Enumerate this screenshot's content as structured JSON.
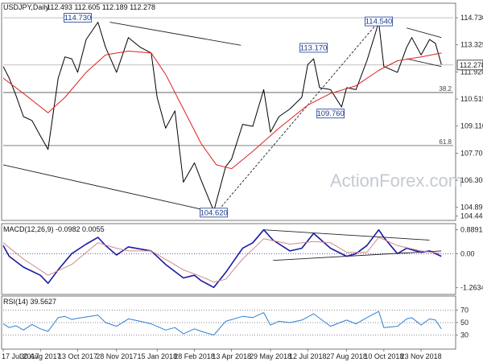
{
  "chart_data": [
    {
      "type": "line",
      "panel": "price",
      "title": "USDJPY,Daily",
      "ohlc_header": "112.493 112.605 112.189 112.278",
      "y_ticks": [
        "114.730",
        "113.325",
        "111.920",
        "110.515",
        "109.110",
        "107.705",
        "106.300",
        "104.895",
        "104.445"
      ],
      "ylim": [
        104.3,
        115.4
      ],
      "x_tick_labels": [
        "17 Jul 2017",
        "30 Aug 2017",
        "13 Oct 2017",
        "28 Nov 2017",
        "15 Jan 2018",
        "28 Feb 2018",
        "13 Apr 2018",
        "29 May 2018",
        "12 Jul 2018",
        "27 Aug 2018",
        "10 Oct 2018",
        "23 Nov 2018"
      ],
      "x_range": [
        "2017-07-17",
        "2018-12-31"
      ],
      "series": [
        {
          "color": "#000000",
          "points": [
            [
              "2017-07-17",
              112.2
            ],
            [
              "2017-07-24",
              111.6
            ],
            [
              "2017-08-01",
              110.7
            ],
            [
              "2017-08-10",
              109.6
            ],
            [
              "2017-08-20",
              109.4
            ],
            [
              "2017-08-30",
              108.6
            ],
            [
              "2017-09-08",
              107.9
            ],
            [
              "2017-09-20",
              111.6
            ],
            [
              "2017-09-28",
              112.7
            ],
            [
              "2017-10-06",
              112.6
            ],
            [
              "2017-10-13",
              111.9
            ],
            [
              "2017-10-23",
              113.6
            ],
            [
              "2017-11-06",
              114.5
            ],
            [
              "2017-11-15",
              113.2
            ],
            [
              "2017-11-28",
              111.9
            ],
            [
              "2017-12-12",
              113.7
            ],
            [
              "2017-12-26",
              113.2
            ],
            [
              "2018-01-08",
              112.9
            ],
            [
              "2018-01-15",
              110.6
            ],
            [
              "2018-01-25",
              109.0
            ],
            [
              "2018-02-05",
              109.9
            ],
            [
              "2018-02-15",
              106.2
            ],
            [
              "2018-02-28",
              107.2
            ],
            [
              "2018-03-08",
              106.3
            ],
            [
              "2018-03-23",
              104.7
            ],
            [
              "2018-03-26",
              105.2
            ],
            [
              "2018-04-06",
              107.0
            ],
            [
              "2018-04-13",
              107.4
            ],
            [
              "2018-04-26",
              109.2
            ],
            [
              "2018-05-08",
              109.1
            ],
            [
              "2018-05-21",
              111.0
            ],
            [
              "2018-05-29",
              108.8
            ],
            [
              "2018-06-08",
              109.6
            ],
            [
              "2018-06-21",
              110.0
            ],
            [
              "2018-07-05",
              110.6
            ],
            [
              "2018-07-12",
              112.3
            ],
            [
              "2018-07-19",
              112.6
            ],
            [
              "2018-07-26",
              111.1
            ],
            [
              "2018-08-08",
              111.0
            ],
            [
              "2018-08-21",
              110.1
            ],
            [
              "2018-08-27",
              111.1
            ],
            [
              "2018-09-07",
              111.0
            ],
            [
              "2018-09-20",
              112.5
            ],
            [
              "2018-10-04",
              114.5
            ],
            [
              "2018-10-10",
              112.2
            ],
            [
              "2018-10-26",
              111.9
            ],
            [
              "2018-11-06",
              113.2
            ],
            [
              "2018-11-12",
              113.7
            ],
            [
              "2018-11-23",
              112.8
            ],
            [
              "2018-12-03",
              113.6
            ],
            [
              "2018-12-10",
              113.4
            ],
            [
              "2018-12-17",
              112.3
            ]
          ]
        },
        {
          "color": "#e02020",
          "points": [
            [
              "2017-07-17",
              111.6
            ],
            [
              "2017-08-10",
              110.8
            ],
            [
              "2017-09-08",
              109.8
            ],
            [
              "2017-09-28",
              110.6
            ],
            [
              "2017-10-23",
              111.9
            ],
            [
              "2017-11-15",
              112.8
            ],
            [
              "2017-12-12",
              113.0
            ],
            [
              "2018-01-08",
              112.9
            ],
            [
              "2018-01-25",
              111.8
            ],
            [
              "2018-02-15",
              110.0
            ],
            [
              "2018-03-08",
              108.2
            ],
            [
              "2018-03-26",
              107.1
            ],
            [
              "2018-04-13",
              106.9
            ],
            [
              "2018-05-08",
              107.8
            ],
            [
              "2018-06-08",
              109.0
            ],
            [
              "2018-07-12",
              110.2
            ],
            [
              "2018-08-08",
              110.8
            ],
            [
              "2018-09-07",
              111.2
            ],
            [
              "2018-10-04",
              112.0
            ],
            [
              "2018-10-26",
              112.5
            ],
            [
              "2018-11-23",
              112.7
            ],
            [
              "2018-12-17",
              112.9
            ]
          ]
        }
      ],
      "horizontal_lines": [
        {
          "value": 114.73,
          "style": "solid",
          "color": "#9a9a9a"
        },
        {
          "value": 112.278,
          "style": "solid",
          "color": "#9a9a9a"
        },
        {
          "value": 110.85,
          "label": "38.2",
          "color": "#333333"
        },
        {
          "value": 108.1,
          "label": "61.8",
          "color": "#333333"
        }
      ],
      "trend_lines": [
        {
          "from": [
            "2017-07-17",
            107.1
          ],
          "to": [
            "2018-03-26",
            104.62
          ],
          "style": "solid"
        },
        {
          "from": [
            "2017-11-20",
            114.5
          ],
          "to": [
            "2018-04-24",
            113.3
          ],
          "style": "solid"
        },
        {
          "from": [
            "2018-03-26",
            104.62
          ],
          "to": [
            "2018-10-04",
            114.54
          ],
          "style": "dashed"
        },
        {
          "from": [
            "2018-11-06",
            114.2
          ],
          "to": [
            "2018-12-17",
            113.7
          ],
          "style": "solid"
        },
        {
          "from": [
            "2018-11-06",
            112.6
          ],
          "to": [
            "2018-12-17",
            112.2
          ],
          "style": "solid"
        }
      ],
      "annotations": [
        {
          "text": "114.730",
          "x": "2017-10-13",
          "y": 114.73
        },
        {
          "text": "113.170",
          "x": "2018-07-19",
          "y": 113.17
        },
        {
          "text": "114.540",
          "x": "2018-10-04",
          "y": 114.54
        },
        {
          "text": "109.760",
          "x": "2018-08-08",
          "y": 109.76
        },
        {
          "text": "104.620",
          "x": "2018-03-23",
          "y": 104.62
        }
      ],
      "last_price_label": "112.278",
      "watermark": "ActionForex.com"
    },
    {
      "type": "line",
      "panel": "macd",
      "title": "MACD(12,26,9) -0.0982 0.0055",
      "y_ticks": [
        "0.8891",
        "0.00",
        "-1.2634"
      ],
      "ylim": [
        -1.45,
        1.05
      ],
      "series": [
        {
          "color": "#1a1aa0",
          "points": [
            [
              "2017-07-17",
              0.3
            ],
            [
              "2017-07-24",
              -0.1
            ],
            [
              "2017-08-10",
              -0.5
            ],
            [
              "2017-08-30",
              -0.8
            ],
            [
              "2017-09-08",
              -1.1
            ],
            [
              "2017-09-20",
              -0.6
            ],
            [
              "2017-10-06",
              0.0
            ],
            [
              "2017-10-23",
              0.35
            ],
            [
              "2017-11-06",
              0.6
            ],
            [
              "2017-11-15",
              0.3
            ],
            [
              "2017-11-28",
              -0.05
            ],
            [
              "2017-12-12",
              0.25
            ],
            [
              "2018-01-08",
              0.1
            ],
            [
              "2018-01-25",
              -0.4
            ],
            [
              "2018-02-15",
              -0.9
            ],
            [
              "2018-02-28",
              -0.8
            ],
            [
              "2018-03-08",
              -1.0
            ],
            [
              "2018-03-23",
              -1.25
            ],
            [
              "2018-04-06",
              -0.7
            ],
            [
              "2018-04-26",
              0.2
            ],
            [
              "2018-05-08",
              0.4
            ],
            [
              "2018-05-21",
              0.88
            ],
            [
              "2018-06-01",
              0.5
            ],
            [
              "2018-06-21",
              0.1
            ],
            [
              "2018-07-05",
              0.2
            ],
            [
              "2018-07-19",
              0.75
            ],
            [
              "2018-08-08",
              0.2
            ],
            [
              "2018-08-27",
              -0.1
            ],
            [
              "2018-09-07",
              0.0
            ],
            [
              "2018-09-20",
              0.3
            ],
            [
              "2018-10-04",
              0.88
            ],
            [
              "2018-10-10",
              0.6
            ],
            [
              "2018-10-26",
              0.0
            ],
            [
              "2018-11-06",
              0.2
            ],
            [
              "2018-11-23",
              0.05
            ],
            [
              "2018-12-03",
              0.1
            ],
            [
              "2018-12-17",
              -0.1
            ]
          ]
        },
        {
          "color": "#d08a8a",
          "points": [
            [
              "2017-07-17",
              0.4
            ],
            [
              "2017-08-10",
              -0.2
            ],
            [
              "2017-09-08",
              -0.8
            ],
            [
              "2017-10-06",
              -0.4
            ],
            [
              "2017-11-06",
              0.4
            ],
            [
              "2017-11-28",
              0.2
            ],
            [
              "2017-12-12",
              0.1
            ],
            [
              "2018-01-08",
              0.1
            ],
            [
              "2018-02-15",
              -0.6
            ],
            [
              "2018-03-08",
              -0.85
            ],
            [
              "2018-03-23",
              -1.05
            ],
            [
              "2018-04-06",
              -0.95
            ],
            [
              "2018-04-26",
              -0.2
            ],
            [
              "2018-05-21",
              0.55
            ],
            [
              "2018-06-21",
              0.35
            ],
            [
              "2018-07-19",
              0.45
            ],
            [
              "2018-08-08",
              0.4
            ],
            [
              "2018-08-27",
              0.05
            ],
            [
              "2018-09-20",
              0.05
            ],
            [
              "2018-10-04",
              0.6
            ],
            [
              "2018-10-26",
              0.3
            ],
            [
              "2018-11-23",
              0.1
            ],
            [
              "2018-12-17",
              0.0
            ]
          ]
        }
      ],
      "horizontal_lines": [
        {
          "value": 0.0,
          "style": "dotted",
          "color": "#1a1aa0"
        }
      ],
      "trend_lines": [
        {
          "from": [
            "2018-05-21",
            0.88
          ],
          "to": [
            "2018-12-03",
            0.5
          ],
          "style": "solid"
        },
        {
          "from": [
            "2018-06-01",
            -0.25
          ],
          "to": [
            "2018-12-17",
            0.1
          ],
          "style": "solid"
        }
      ]
    },
    {
      "type": "line",
      "panel": "rsi",
      "title": "RSI(14) 39.5627",
      "y_ticks": [
        "70",
        "50",
        "30"
      ],
      "ylim": [
        10,
        90
      ],
      "series": [
        {
          "color": "#2f7fd6",
          "points": [
            [
              "2017-07-17",
              48
            ],
            [
              "2017-07-24",
              42
            ],
            [
              "2017-08-01",
              45
            ],
            [
              "2017-08-10",
              38
            ],
            [
              "2017-08-20",
              47
            ],
            [
              "2017-08-30",
              40
            ],
            [
              "2017-09-08",
              36
            ],
            [
              "2017-09-20",
              58
            ],
            [
              "2017-09-28",
              60
            ],
            [
              "2017-10-06",
              55
            ],
            [
              "2017-10-13",
              57
            ],
            [
              "2017-10-23",
              59
            ],
            [
              "2017-11-06",
              62
            ],
            [
              "2017-11-15",
              50
            ],
            [
              "2017-11-28",
              44
            ],
            [
              "2017-12-12",
              56
            ],
            [
              "2017-12-26",
              52
            ],
            [
              "2018-01-08",
              48
            ],
            [
              "2018-01-25",
              38
            ],
            [
              "2018-02-05",
              42
            ],
            [
              "2018-02-15",
              32
            ],
            [
              "2018-02-28",
              40
            ],
            [
              "2018-03-08",
              36
            ],
            [
              "2018-03-23",
              30
            ],
            [
              "2018-04-06",
              52
            ],
            [
              "2018-04-26",
              60
            ],
            [
              "2018-05-08",
              58
            ],
            [
              "2018-05-21",
              66
            ],
            [
              "2018-05-29",
              46
            ],
            [
              "2018-06-08",
              52
            ],
            [
              "2018-06-21",
              50
            ],
            [
              "2018-07-05",
              54
            ],
            [
              "2018-07-19",
              64
            ],
            [
              "2018-08-08",
              44
            ],
            [
              "2018-08-27",
              54
            ],
            [
              "2018-09-07",
              48
            ],
            [
              "2018-09-20",
              58
            ],
            [
              "2018-10-04",
              68
            ],
            [
              "2018-10-10",
              42
            ],
            [
              "2018-10-26",
              44
            ],
            [
              "2018-11-06",
              56
            ],
            [
              "2018-11-12",
              58
            ],
            [
              "2018-11-23",
              46
            ],
            [
              "2018-12-03",
              56
            ],
            [
              "2018-12-10",
              54
            ],
            [
              "2018-12-17",
              40
            ]
          ]
        }
      ],
      "horizontal_lines": [
        {
          "value": 70,
          "style": "dotted",
          "color": "#666666"
        },
        {
          "value": 50,
          "style": "dotted",
          "color": "#666666"
        },
        {
          "value": 30,
          "style": "dotted",
          "color": "#666666"
        }
      ]
    }
  ]
}
